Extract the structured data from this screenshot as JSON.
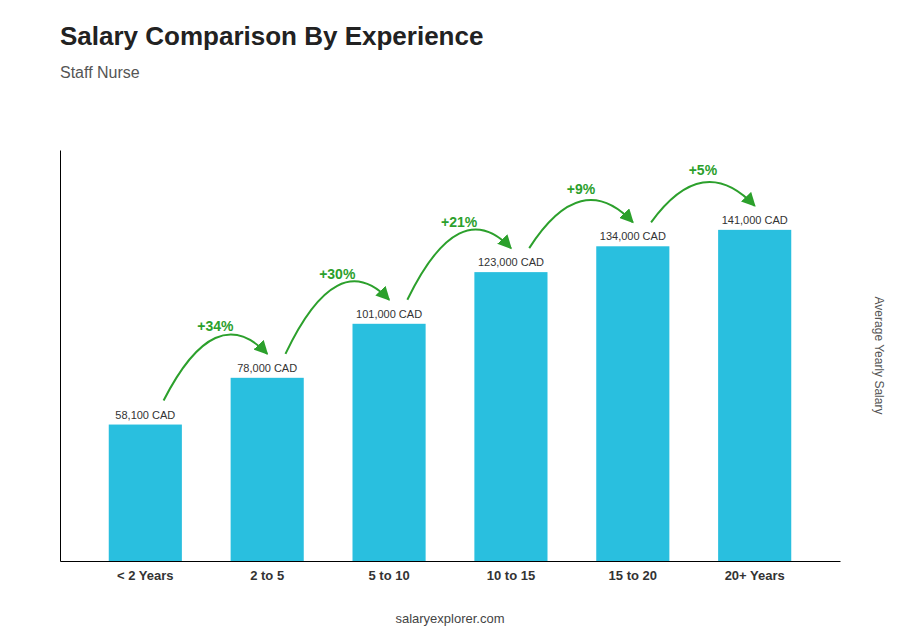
{
  "chart_data": {
    "type": "bar",
    "title": "Salary Comparison By Experience",
    "subtitle": "Staff Nurse",
    "ylabel": "Average Yearly Salary",
    "categories": [
      "< 2 Years",
      "2 to 5",
      "5 to 10",
      "10 to 15",
      "15 to 20",
      "20+ Years"
    ],
    "values": [
      58100,
      78000,
      101000,
      123000,
      134000,
      141000
    ],
    "value_labels": [
      "58,100 CAD",
      "78,000 CAD",
      "101,000 CAD",
      "123,000 CAD",
      "134,000 CAD",
      "141,000 CAD"
    ],
    "data_labels": true,
    "color": "#29bfdf",
    "annotations": [
      "+34%",
      "+30%",
      "+21%",
      "+9%",
      "+5%"
    ],
    "footer": "salaryexplorer.com",
    "ylim": [
      0,
      175000
    ],
    "grid": false,
    "tick_labels": "x"
  }
}
